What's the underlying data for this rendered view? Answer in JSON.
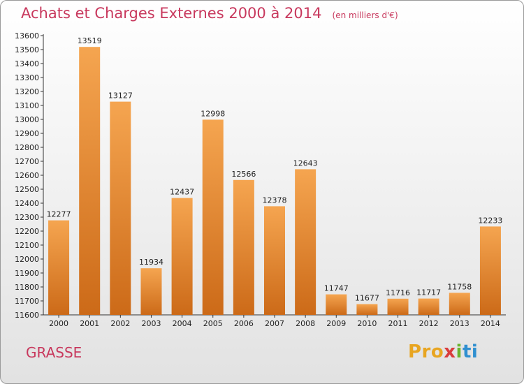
{
  "header": {
    "title": "Achats et Charges Externes 2000 à 2014",
    "unit": "(en milliers d'€)"
  },
  "footer": {
    "city": "GRASSE",
    "logo": "Proxiti"
  },
  "colors": {
    "title": "#c8385d",
    "bar_light": "#f5a550",
    "bar_dark": "#cc6a18"
  },
  "chart_data": {
    "type": "bar",
    "title": "Achats et Charges Externes 2000 à 2014",
    "xlabel": "",
    "ylabel": "",
    "ylim": [
      11600,
      13600
    ],
    "ytick_step": 100,
    "grid": false,
    "categories": [
      "2000",
      "2001",
      "2002",
      "2003",
      "2004",
      "2005",
      "2006",
      "2007",
      "2008",
      "2009",
      "2010",
      "2011",
      "2012",
      "2013",
      "2014"
    ],
    "values": [
      12277,
      13519,
      13127,
      11934,
      12437,
      12998,
      12566,
      12378,
      12643,
      11747,
      11677,
      11716,
      11717,
      11758,
      12233
    ]
  }
}
